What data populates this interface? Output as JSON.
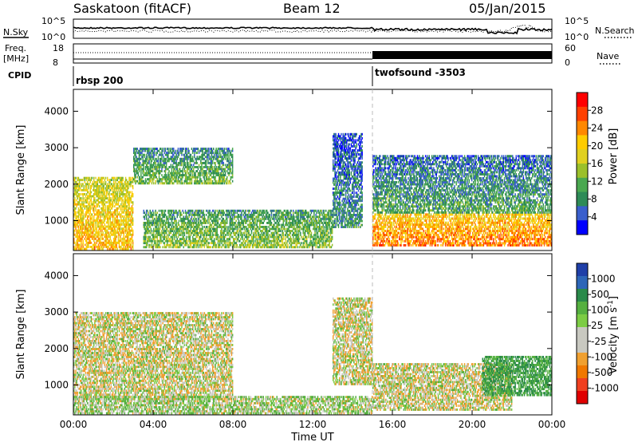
{
  "header": {
    "title": "Saskatoon (fitACF)",
    "beam": "Beam 12",
    "date": "05/Jan/2015"
  },
  "top_panels": {
    "nsky_label": "N.Sky",
    "nsearch_label": "N.Search",
    "nsky_ticks": [
      "10^5",
      "10^0"
    ],
    "nsky_right_ticks": [
      "10^5",
      "10^0"
    ],
    "freq_label_1": "Freq.",
    "freq_label_2": "[MHz]",
    "freq_ticks": [
      "18",
      "8"
    ],
    "nave_label": "Nave",
    "nave_ticks": [
      "60",
      "0"
    ],
    "cpid_label": "CPID",
    "cpid_segments": [
      "rbsp 200",
      "twofsound -3503"
    ],
    "cpid_change_time": "15:00"
  },
  "panels": {
    "power": {
      "ylabel": "Slant Range [km]",
      "colorbar_label": "Power [dB]",
      "colorbar_ticks": [
        "28",
        "24",
        "20",
        "16",
        "12",
        "8",
        "4"
      ],
      "colorbar_colors": [
        "#ff0000",
        "#ff4000",
        "#ff8800",
        "#ffcc00",
        "#e0d020",
        "#9bc02a",
        "#4aa850",
        "#2e8b57",
        "#3a5fcd",
        "#0000ff"
      ]
    },
    "velocity": {
      "ylabel": "Slant Range [km]",
      "colorbar_label": "Velocity [m s",
      "colorbar_label_sup": "-1",
      "colorbar_label_end": "]",
      "colorbar_ticks": [
        "1000",
        "500",
        "100",
        "25",
        "-25",
        "-100",
        "-500",
        "-1000"
      ],
      "colorbar_colors": [
        "#1f3fa8",
        "#2d66b8",
        "#2a8a4a",
        "#55b040",
        "#7ccc44",
        "#c8c8c0",
        "#c8c8c0",
        "#f0a030",
        "#f07800",
        "#f04020",
        "#e00000"
      ]
    }
  },
  "xaxis": {
    "label": "Time UT",
    "ticks": [
      "00:00",
      "04:00",
      "08:00",
      "12:00",
      "16:00",
      "20:00",
      "00:00"
    ]
  },
  "yaxis": {
    "ticks": [
      "4000",
      "3000",
      "2000",
      "1000"
    ]
  },
  "chart_data": [
    {
      "type": "heatmap",
      "title": "Power",
      "xlabel": "Time UT",
      "ylabel": "Slant Range [km]",
      "x_range_hours": [
        0,
        24
      ],
      "ylim": [
        180,
        4600
      ],
      "colorbar": {
        "label": "Power [dB]",
        "range": [
          0,
          32
        ]
      },
      "regions": [
        {
          "t0": 0.0,
          "t1": 3.0,
          "r0": 200,
          "r1": 2200,
          "value": 22
        },
        {
          "t0": 3.0,
          "t1": 8.0,
          "r0": 2000,
          "r1": 3000,
          "value": 12
        },
        {
          "t0": 3.5,
          "t1": 13.0,
          "r0": 250,
          "r1": 1300,
          "value": 14
        },
        {
          "t0": 13.0,
          "t1": 14.5,
          "r0": 800,
          "r1": 3400,
          "value": 8
        },
        {
          "t0": 15.0,
          "t1": 24.0,
          "r0": 300,
          "r1": 1200,
          "value": 26
        },
        {
          "t0": 15.0,
          "t1": 24.0,
          "r0": 1200,
          "r1": 2800,
          "value": 10
        }
      ]
    },
    {
      "type": "heatmap",
      "title": "Velocity",
      "xlabel": "Time UT",
      "ylabel": "Slant Range [km]",
      "x_range_hours": [
        0,
        24
      ],
      "ylim": [
        180,
        4600
      ],
      "colorbar": {
        "label": "Velocity [m s-1]",
        "range": [
          -1000,
          1000
        ]
      },
      "regions": [
        {
          "t0": 0.0,
          "t1": 8.0,
          "r0": 600,
          "r1": 3000,
          "value": 0
        },
        {
          "t0": 0.0,
          "t1": 15.0,
          "r0": 200,
          "r1": 700,
          "value": 60
        },
        {
          "t0": 13.0,
          "t1": 15.0,
          "r0": 1000,
          "r1": 3400,
          "value": 0
        },
        {
          "t0": 15.0,
          "t1": 22.0,
          "r0": 300,
          "r1": 1600,
          "value": 0
        },
        {
          "t0": 20.5,
          "t1": 24.0,
          "r0": 700,
          "r1": 1800,
          "value": 300
        }
      ]
    }
  ]
}
